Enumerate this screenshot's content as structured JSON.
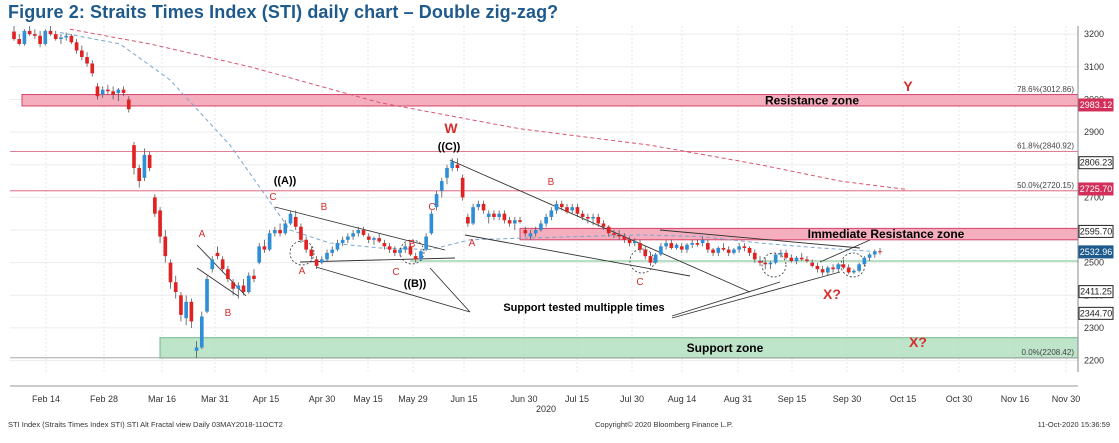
{
  "title": "Figure 2: Straits Times Index (STI) daily chart – Double zig-zag?",
  "chart_data": {
    "type": "candlestick",
    "x_ticks": [
      "Feb 14",
      "Feb 28",
      "Mar 16",
      "Mar 31",
      "Apr 15",
      "Apr 30",
      "May 15",
      "May 29",
      "Jun 15",
      "Jun 30",
      "Jul 15",
      "Jul 30",
      "Aug 14",
      "Aug 31",
      "Sep 15",
      "Sep 30",
      "Oct 15",
      "Oct 30",
      "Nov 16",
      "Nov 30"
    ],
    "year_label": "2020",
    "y_ticks": [
      2200,
      2300,
      2400,
      2500,
      2600,
      2700,
      2800,
      2900,
      3000,
      3100,
      3200
    ],
    "ylim": [
      2165,
      3225
    ],
    "price_tags": [
      {
        "label": "2983.12",
        "value": 2983.12,
        "color": "#d32f5a"
      },
      {
        "label": "2806.23",
        "value": 2806.23,
        "color": "#222222"
      },
      {
        "label": "2725.70",
        "value": 2725.7,
        "color": "#d32f5a"
      },
      {
        "label": "2595.70",
        "value": 2595.7,
        "color": "#222222"
      },
      {
        "label": "2532.96",
        "value": 2532.96,
        "color": "#1f5a8c"
      },
      {
        "label": "2411.25",
        "value": 2411.25,
        "color": "#222222"
      },
      {
        "label": "2344.70",
        "value": 2344.7,
        "color": "#222222"
      }
    ],
    "fib_levels": [
      {
        "label": "78.6%(3012.86)",
        "value": 3012.86
      },
      {
        "label": "61.8%(2840.92)",
        "value": 2840.92
      },
      {
        "label": "50.0%(2720.15)",
        "value": 2720.15
      },
      {
        "label": "0.0%(2208.42)",
        "value": 2208.42
      }
    ],
    "zones": [
      {
        "label": "Resistance zone",
        "from": 2980,
        "to": 3015
      },
      {
        "label": "Immediate Resistance zone",
        "from": 2570,
        "to": 2605
      },
      {
        "label": "Support zone",
        "from": 2208,
        "to": 2270
      }
    ],
    "support_line": 2505,
    "wave_labels": [
      "W",
      "((C))",
      "((A))",
      "((B))",
      "A",
      "B",
      "C",
      "X?",
      "Y"
    ],
    "annotation": "Support tested multipple times",
    "candles": [
      [
        3208,
        3225,
        3180,
        3185
      ],
      [
        3185,
        3200,
        3165,
        3170
      ],
      [
        3170,
        3215,
        3165,
        3210
      ],
      [
        3210,
        3225,
        3195,
        3200
      ],
      [
        3200,
        3215,
        3185,
        3195
      ],
      [
        3195,
        3210,
        3160,
        3170
      ],
      [
        3170,
        3215,
        3165,
        3210
      ],
      [
        3210,
        3225,
        3195,
        3200
      ],
      [
        3200,
        3210,
        3180,
        3185
      ],
      [
        3185,
        3200,
        3170,
        3190
      ],
      [
        3190,
        3205,
        3180,
        3195
      ],
      [
        3195,
        3200,
        3170,
        3175
      ],
      [
        3175,
        3185,
        3140,
        3150
      ],
      [
        3150,
        3165,
        3120,
        3130
      ],
      [
        3130,
        3145,
        3100,
        3110
      ],
      [
        3110,
        3120,
        3070,
        3080
      ],
      [
        3040,
        3050,
        3000,
        3010
      ],
      [
        3015,
        3040,
        3005,
        3030
      ],
      [
        3030,
        3045,
        3015,
        3025
      ],
      [
        3025,
        3040,
        3000,
        3015
      ],
      [
        3020,
        3035,
        2995,
        3030
      ],
      [
        3030,
        3040,
        3010,
        3020
      ],
      [
        3000,
        3010,
        2960,
        2970
      ],
      [
        2860,
        2870,
        2770,
        2790
      ],
      [
        2790,
        2800,
        2730,
        2750
      ],
      [
        2760,
        2850,
        2750,
        2830
      ],
      [
        2830,
        2840,
        2780,
        2790
      ],
      [
        2700,
        2710,
        2640,
        2650
      ],
      [
        2660,
        2670,
        2560,
        2580
      ],
      [
        2580,
        2600,
        2500,
        2520
      ],
      [
        2500,
        2510,
        2420,
        2440
      ],
      [
        2440,
        2460,
        2390,
        2410
      ],
      [
        2400,
        2410,
        2320,
        2340
      ],
      [
        2330,
        2400,
        2308,
        2380
      ],
      [
        2380,
        2390,
        2300,
        2320
      ],
      [
        2230,
        2260,
        2208,
        2240
      ],
      [
        2240,
        2350,
        2235,
        2335
      ],
      [
        2350,
        2460,
        2345,
        2450
      ],
      [
        2480,
        2520,
        2470,
        2510
      ],
      [
        2530,
        2550,
        2510,
        2520
      ],
      [
        2510,
        2520,
        2470,
        2480
      ],
      [
        2480,
        2490,
        2440,
        2450
      ],
      [
        2440,
        2450,
        2400,
        2420
      ],
      [
        2420,
        2440,
        2390,
        2430
      ],
      [
        2430,
        2450,
        2400,
        2410
      ],
      [
        2410,
        2470,
        2405,
        2460
      ],
      [
        2460,
        2480,
        2440,
        2450
      ],
      [
        2500,
        2560,
        2495,
        2550
      ],
      [
        2550,
        2570,
        2530,
        2540
      ],
      [
        2540,
        2600,
        2535,
        2590
      ],
      [
        2590,
        2610,
        2580,
        2600
      ],
      [
        2600,
        2620,
        2580,
        2590
      ],
      [
        2590,
        2630,
        2585,
        2620
      ],
      [
        2620,
        2660,
        2615,
        2650
      ],
      [
        2640,
        2660,
        2600,
        2610
      ],
      [
        2610,
        2620,
        2560,
        2570
      ],
      [
        2570,
        2580,
        2530,
        2540
      ],
      [
        2540,
        2550,
        2510,
        2520
      ],
      [
        2510,
        2520,
        2480,
        2490
      ],
      [
        2500,
        2520,
        2495,
        2510
      ],
      [
        2510,
        2540,
        2505,
        2530
      ],
      [
        2530,
        2550,
        2520,
        2540
      ],
      [
        2540,
        2570,
        2535,
        2560
      ],
      [
        2560,
        2580,
        2550,
        2570
      ],
      [
        2570,
        2590,
        2560,
        2580
      ],
      [
        2580,
        2600,
        2570,
        2590
      ],
      [
        2590,
        2610,
        2580,
        2600
      ],
      [
        2600,
        2610,
        2580,
        2585
      ],
      [
        2580,
        2590,
        2560,
        2570
      ],
      [
        2570,
        2580,
        2555,
        2575
      ],
      [
        2575,
        2590,
        2560,
        2565
      ],
      [
        2560,
        2570,
        2540,
        2550
      ],
      [
        2550,
        2560,
        2530,
        2540
      ],
      [
        2540,
        2550,
        2520,
        2530
      ],
      [
        2530,
        2545,
        2520,
        2540
      ],
      [
        2540,
        2560,
        2530,
        2550
      ],
      [
        2550,
        2560,
        2520,
        2525
      ],
      [
        2520,
        2530,
        2500,
        2510
      ],
      [
        2510,
        2540,
        2505,
        2535
      ],
      [
        2540,
        2590,
        2535,
        2580
      ],
      [
        2590,
        2660,
        2585,
        2650
      ],
      [
        2670,
        2720,
        2660,
        2710
      ],
      [
        2720,
        2760,
        2700,
        2750
      ],
      [
        2760,
        2800,
        2740,
        2790
      ],
      [
        2790,
        2820,
        2780,
        2810
      ],
      [
        2800,
        2820,
        2780,
        2790
      ],
      [
        2760,
        2770,
        2690,
        2700
      ],
      [
        2640,
        2650,
        2610,
        2620
      ],
      [
        2620,
        2680,
        2615,
        2670
      ],
      [
        2670,
        2690,
        2660,
        2680
      ],
      [
        2680,
        2690,
        2650,
        2660
      ],
      [
        2640,
        2660,
        2620,
        2650
      ],
      [
        2650,
        2660,
        2630,
        2640
      ],
      [
        2640,
        2660,
        2630,
        2650
      ],
      [
        2650,
        2660,
        2620,
        2630
      ],
      [
        2630,
        2640,
        2610,
        2620
      ],
      [
        2620,
        2640,
        2600,
        2630
      ],
      [
        2630,
        2640,
        2620,
        2625
      ],
      [
        2600,
        2610,
        2580,
        2590
      ],
      [
        2580,
        2600,
        2570,
        2590
      ],
      [
        2590,
        2610,
        2580,
        2600
      ],
      [
        2600,
        2630,
        2595,
        2620
      ],
      [
        2620,
        2650,
        2610,
        2640
      ],
      [
        2640,
        2670,
        2630,
        2660
      ],
      [
        2660,
        2690,
        2650,
        2680
      ],
      [
        2680,
        2690,
        2660,
        2670
      ],
      [
        2670,
        2680,
        2650,
        2655
      ],
      [
        2660,
        2680,
        2650,
        2670
      ],
      [
        2670,
        2680,
        2640,
        2650
      ],
      [
        2650,
        2660,
        2630,
        2640
      ],
      [
        2640,
        2650,
        2620,
        2635
      ],
      [
        2635,
        2650,
        2615,
        2640
      ],
      [
        2640,
        2650,
        2610,
        2620
      ],
      [
        2620,
        2630,
        2600,
        2610
      ],
      [
        2610,
        2615,
        2580,
        2590
      ],
      [
        2590,
        2600,
        2575,
        2585
      ],
      [
        2585,
        2600,
        2570,
        2580
      ],
      [
        2580,
        2590,
        2560,
        2570
      ],
      [
        2570,
        2580,
        2550,
        2560
      ],
      [
        2560,
        2575,
        2550,
        2565
      ],
      [
        2560,
        2570,
        2530,
        2540
      ],
      [
        2540,
        2550,
        2510,
        2520
      ],
      [
        2520,
        2530,
        2490,
        2500
      ],
      [
        2500,
        2530,
        2495,
        2525
      ],
      [
        2525,
        2560,
        2520,
        2550
      ],
      [
        2550,
        2570,
        2540,
        2560
      ],
      [
        2560,
        2570,
        2540,
        2545
      ],
      [
        2545,
        2560,
        2540,
        2555
      ],
      [
        2550,
        2560,
        2530,
        2540
      ],
      [
        2540,
        2560,
        2530,
        2555
      ],
      [
        2555,
        2570,
        2545,
        2560
      ],
      [
        2560,
        2570,
        2550,
        2555
      ],
      [
        2560,
        2580,
        2550,
        2570
      ],
      [
        2560,
        2570,
        2530,
        2540
      ],
      [
        2540,
        2545,
        2520,
        2530
      ],
      [
        2530,
        2550,
        2520,
        2545
      ],
      [
        2545,
        2560,
        2535,
        2540
      ],
      [
        2540,
        2550,
        2520,
        2530
      ],
      [
        2530,
        2545,
        2525,
        2540
      ],
      [
        2540,
        2560,
        2530,
        2550
      ],
      [
        2550,
        2560,
        2535,
        2545
      ],
      [
        2545,
        2550,
        2520,
        2530
      ],
      [
        2530,
        2540,
        2500,
        2510
      ],
      [
        2505,
        2520,
        2490,
        2500
      ],
      [
        2500,
        2515,
        2480,
        2495
      ],
      [
        2495,
        2505,
        2480,
        2500
      ],
      [
        2500,
        2530,
        2495,
        2525
      ],
      [
        2525,
        2540,
        2515,
        2530
      ],
      [
        2530,
        2540,
        2510,
        2515
      ],
      [
        2515,
        2525,
        2500,
        2505
      ],
      [
        2505,
        2520,
        2495,
        2515
      ],
      [
        2515,
        2530,
        2505,
        2510
      ],
      [
        2510,
        2520,
        2500,
        2505
      ],
      [
        2500,
        2510,
        2485,
        2490
      ],
      [
        2490,
        2500,
        2470,
        2480
      ],
      [
        2480,
        2490,
        2460,
        2470
      ],
      [
        2470,
        2490,
        2460,
        2485
      ],
      [
        2485,
        2495,
        2470,
        2480
      ],
      [
        2480,
        2500,
        2470,
        2495
      ],
      [
        2495,
        2510,
        2480,
        2485
      ],
      [
        2485,
        2495,
        2465,
        2470
      ],
      [
        2470,
        2480,
        2465,
        2475
      ],
      [
        2475,
        2500,
        2470,
        2495
      ],
      [
        2495,
        2520,
        2490,
        2515
      ],
      [
        2515,
        2530,
        2505,
        2525
      ],
      [
        2525,
        2540,
        2515,
        2535
      ],
      [
        2535,
        2545,
        2525,
        2533
      ]
    ]
  },
  "footer": {
    "left": "STI Index (Straits Times Index STI) STI Alt Fractal view  Daily 03MAY2018-11OCT2",
    "center": "Copyright© 2020 Bloomberg Finance L.P.",
    "right": "11-Oct-2020 15:36:59"
  }
}
